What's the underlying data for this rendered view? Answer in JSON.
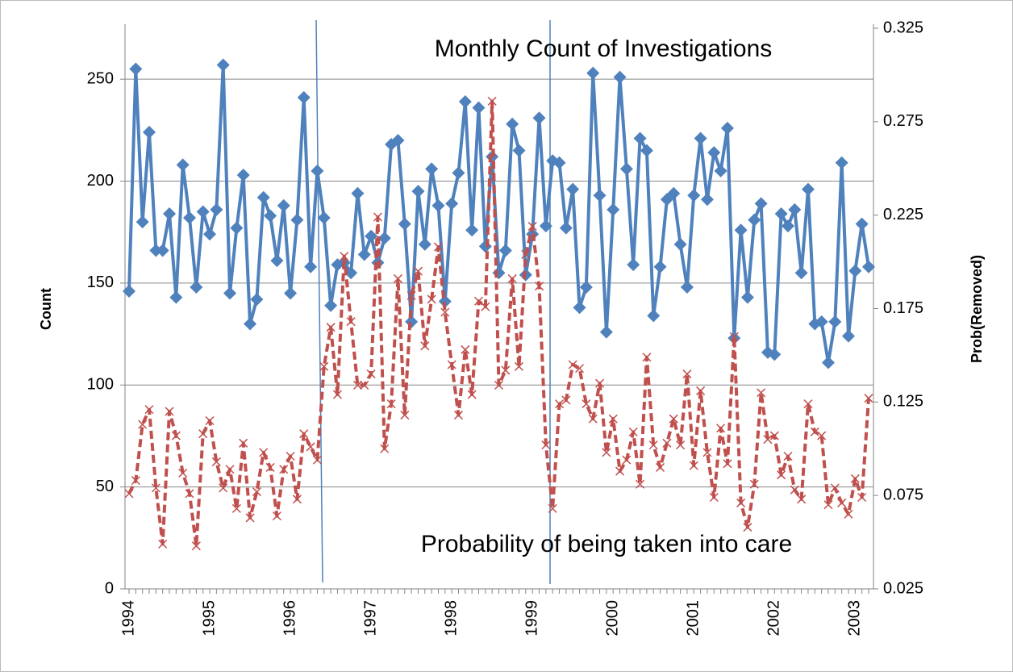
{
  "chart_data": {
    "type": "line",
    "y_label": "Count",
    "y2_label": "Prob(Removed)",
    "annotations": [
      "Monthly Count of Investigations",
      "Probability of being taken into care"
    ],
    "categories": [
      "1994",
      null,
      null,
      null,
      null,
      null,
      null,
      null,
      null,
      null,
      null,
      null,
      "1995",
      null,
      null,
      null,
      null,
      null,
      null,
      null,
      null,
      null,
      null,
      null,
      "1996",
      null,
      null,
      null,
      null,
      null,
      null,
      null,
      null,
      null,
      null,
      null,
      "1997",
      null,
      null,
      null,
      null,
      null,
      null,
      null,
      null,
      null,
      null,
      null,
      "1998",
      null,
      null,
      null,
      null,
      null,
      null,
      null,
      null,
      null,
      null,
      null,
      "1999",
      null,
      null,
      null,
      null,
      null,
      null,
      null,
      null,
      null,
      null,
      null,
      "2000",
      null,
      null,
      null,
      null,
      null,
      null,
      null,
      null,
      null,
      null,
      null,
      "2001",
      null,
      null,
      null,
      null,
      null,
      null,
      null,
      null,
      null,
      null,
      null,
      "2002",
      null,
      null,
      null,
      null,
      null,
      null,
      null,
      null,
      null,
      null,
      null,
      "2003",
      null,
      null
    ],
    "series": [
      {
        "color": "#4f81bd",
        "marker": "diamond",
        "dashed": false,
        "values": [
          146,
          255,
          180,
          224,
          166,
          166,
          184,
          143,
          208,
          182,
          148,
          185,
          174,
          186,
          257,
          145,
          177,
          203,
          130,
          142,
          192,
          183,
          161,
          188,
          145,
          181,
          241,
          158,
          205,
          182,
          139,
          159,
          160,
          155,
          194,
          164,
          173,
          160,
          172,
          218,
          220,
          179,
          131,
          195,
          169,
          206,
          188,
          141,
          189,
          204,
          239,
          176,
          236,
          168,
          212,
          155,
          166,
          228,
          215,
          154,
          174,
          231,
          178,
          210,
          209,
          177,
          196,
          138,
          148,
          253,
          193,
          126,
          186,
          251,
          206,
          159,
          221,
          215,
          134,
          158,
          191,
          194,
          169,
          148,
          193,
          221,
          191,
          214,
          205,
          226,
          123,
          176,
          143,
          181,
          189,
          116,
          115,
          184,
          178,
          186,
          155,
          196,
          130,
          131,
          111,
          131,
          209,
          124,
          156,
          179,
          158
        ]
      },
      {
        "color": "#c0504d",
        "marker": "x",
        "dashed": true,
        "axis": "y2",
        "values": [
          0.076,
          0.083,
          0.113,
          0.121,
          0.079,
          0.049,
          0.12,
          0.107,
          0.087,
          0.076,
          0.048,
          0.108,
          0.115,
          0.093,
          0.079,
          0.089,
          0.068,
          0.103,
          0.063,
          0.077,
          0.098,
          0.09,
          0.064,
          0.089,
          0.096,
          0.073,
          0.108,
          0.101,
          0.094,
          0.144,
          0.165,
          0.129,
          0.203,
          0.168,
          0.134,
          0.134,
          0.14,
          0.224,
          0.1,
          0.124,
          0.191,
          0.118,
          0.182,
          0.195,
          0.155,
          0.18,
          0.208,
          0.173,
          0.145,
          0.118,
          0.153,
          0.129,
          0.179,
          0.176,
          0.286,
          0.134,
          0.142,
          0.191,
          0.144,
          0.204,
          0.219,
          0.187,
          0.102,
          0.068,
          0.124,
          0.126,
          0.145,
          0.143,
          0.124,
          0.116,
          0.135,
          0.098,
          0.116,
          0.088,
          0.094,
          0.109,
          0.081,
          0.149,
          0.102,
          0.09,
          0.103,
          0.116,
          0.102,
          0.14,
          0.091,
          0.131,
          0.098,
          0.074,
          0.111,
          0.092,
          0.16,
          0.071,
          0.058,
          0.081,
          0.13,
          0.105,
          0.107,
          0.086,
          0.096,
          0.078,
          0.073,
          0.124,
          0.109,
          0.107,
          0.07,
          0.079,
          0.071,
          0.065,
          0.084,
          0.074,
          0.127
        ]
      }
    ],
    "ylim": [
      0,
      275
    ],
    "yticks": [
      0,
      50,
      100,
      150,
      200,
      250
    ],
    "y2lim": [
      0.025,
      0.325
    ],
    "y2ticks": [
      0.025,
      0.075,
      0.125,
      0.175,
      0.225,
      0.275,
      0.325
    ],
    "grid": true
  }
}
